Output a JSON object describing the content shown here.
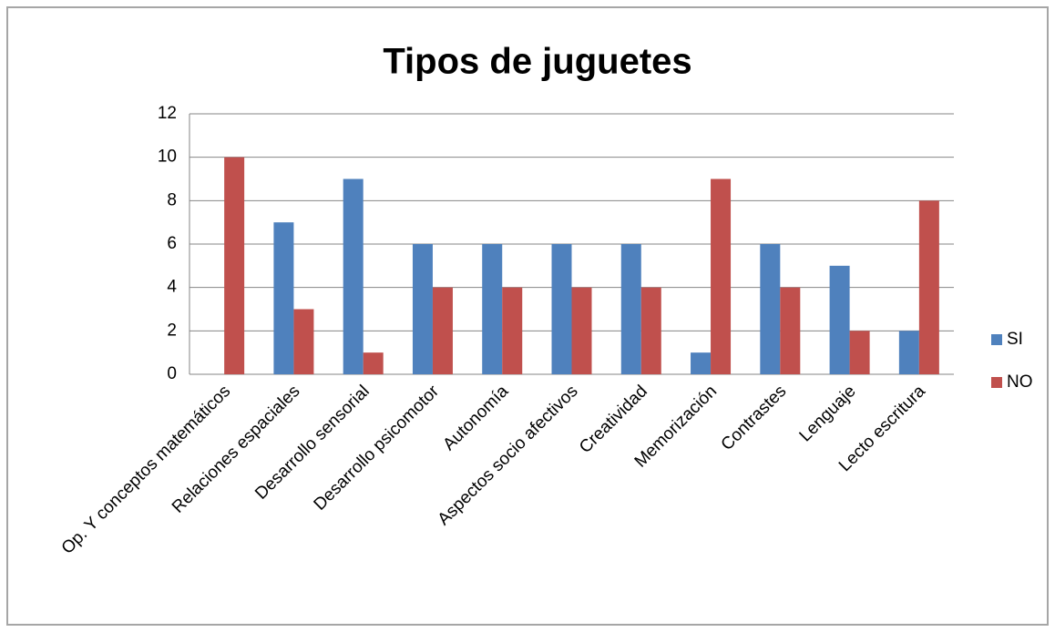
{
  "chart_data": {
    "type": "bar",
    "title": "Tipos de juguetes",
    "categories": [
      "Op. Y conceptos matemáticos",
      "Relaciones espaciales",
      "Desarrollo sensorial",
      "Desarrollo psicomotor",
      "Autonomía",
      "Aspectos socio afectivos",
      "Creatividad",
      "Memorización",
      "Contrastes",
      "Lenguaje",
      "Lecto escritura"
    ],
    "series": [
      {
        "name": "SI",
        "color": "#4f81bd",
        "values": [
          0,
          7,
          9,
          6,
          6,
          6,
          6,
          1,
          6,
          5,
          2
        ]
      },
      {
        "name": "NO",
        "color": "#c0504d",
        "values": [
          10,
          3,
          1,
          4,
          4,
          4,
          4,
          9,
          4,
          2,
          8
        ]
      }
    ],
    "ylim": [
      0,
      12
    ],
    "yticks": [
      0,
      2,
      4,
      6,
      8,
      10,
      12
    ],
    "grid": true,
    "legend": "right"
  }
}
